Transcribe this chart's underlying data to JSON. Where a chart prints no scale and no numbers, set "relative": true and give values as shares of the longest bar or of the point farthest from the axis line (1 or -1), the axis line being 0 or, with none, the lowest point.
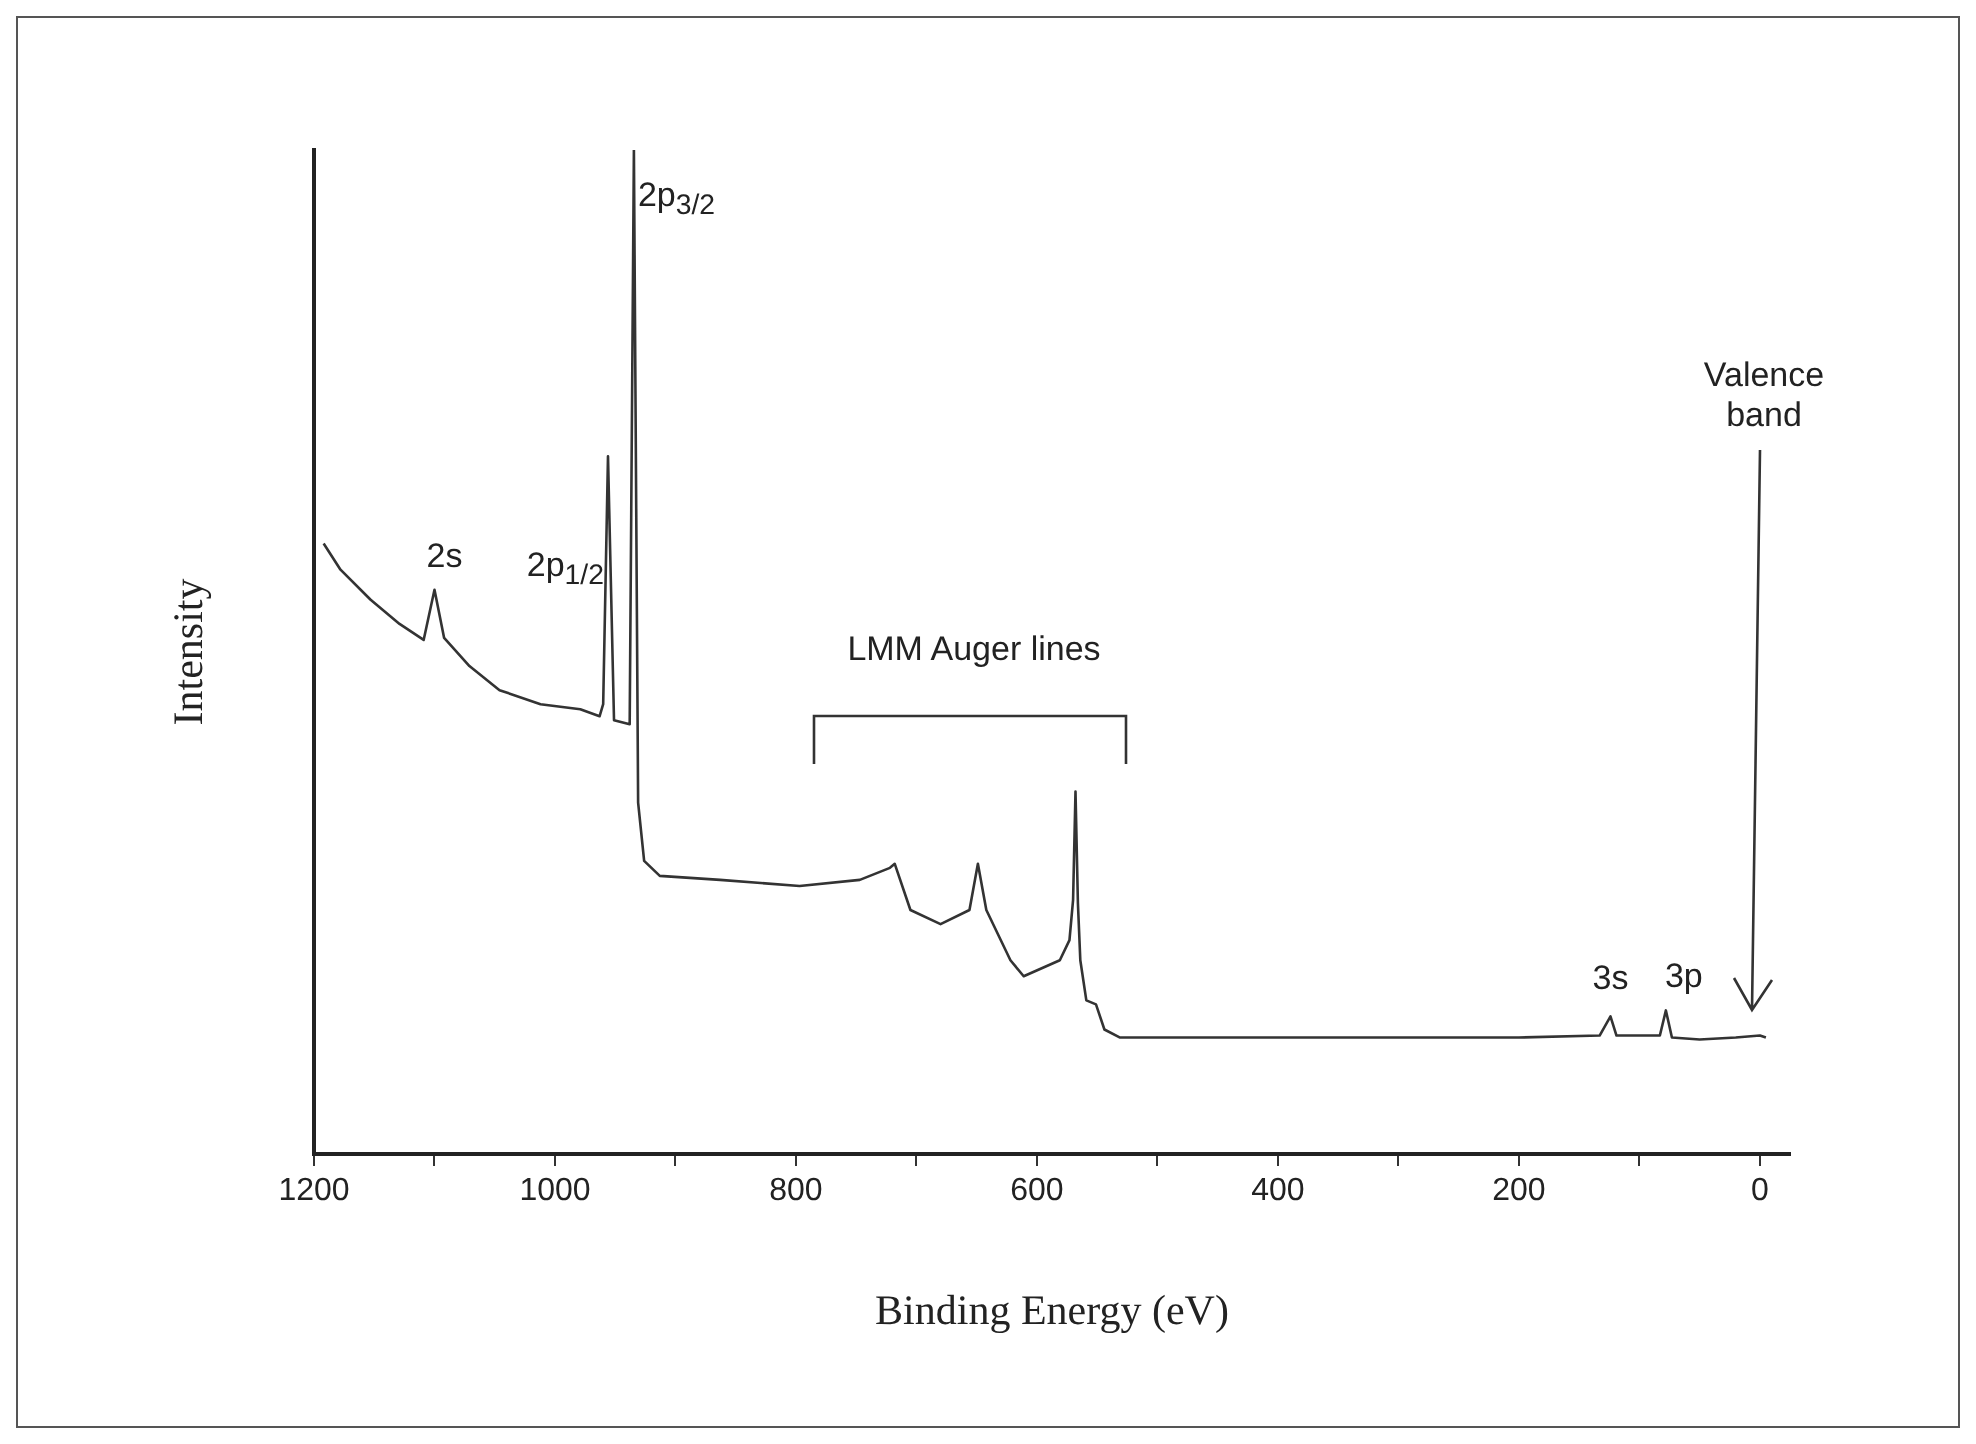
{
  "chart_data": {
    "type": "line",
    "relative": true,
    "xlabel": "Binding Energy (eV)",
    "ylabel": "Intensity",
    "marker": "none",
    "grid": false,
    "legend": false,
    "xlim": [
      1200,
      -25
    ],
    "xticks": [
      1200,
      {
        "value": 1100,
        "label": null
      },
      1000,
      {
        "value": 900,
        "label": null
      },
      800,
      {
        "value": 700,
        "label": null
      },
      600,
      {
        "value": 500,
        "label": null
      },
      400,
      {
        "value": 300,
        "label": null
      },
      200,
      {
        "value": 100,
        "label": null
      },
      0
    ],
    "series": [
      {
        "color": "#333333",
        "x": [
          1192,
          1178,
          1153,
          1129,
          1109,
          1100,
          1092,
          1071,
          1046,
          1012,
          979,
          963,
          960,
          956,
          951,
          938,
          934.5,
          931,
          926,
          913,
          863,
          797,
          747,
          722,
          718,
          705,
          680,
          656,
          649,
          642,
          622,
          611,
          581,
          573,
          570,
          568,
          566,
          564,
          559,
          551,
          544,
          531,
          400,
          300,
          200,
          133,
          124,
          119,
          83,
          78,
          73,
          50,
          20,
          0,
          -5
        ],
        "values": [
          0.608,
          0.582,
          0.552,
          0.528,
          0.512,
          0.562,
          0.514,
          0.486,
          0.462,
          0.448,
          0.443,
          0.436,
          0.448,
          0.695,
          0.432,
          0.428,
          1,
          0.35,
          0.292,
          0.277,
          0.273,
          0.267,
          0.273,
          0.285,
          0.289,
          0.243,
          0.229,
          0.243,
          0.289,
          0.243,
          0.193,
          0.177,
          0.193,
          0.213,
          0.253,
          0.361,
          0.25,
          0.193,
          0.153,
          0.149,
          0.124,
          0.116,
          0.116,
          0.116,
          0.116,
          0.118,
          0.137,
          0.118,
          0.118,
          0.143,
          0.116,
          0.114,
          0.116,
          0.118,
          0.116
        ]
      }
    ],
    "annotations": [
      {
        "text": "2s",
        "x": 1100,
        "y": 0.562
      },
      {
        "text": "2p$_{1/2}$",
        "x": 956,
        "y": 0.695
      },
      {
        "text": "2p$_{3/2}$",
        "x": 934.5,
        "y": 1
      },
      "LMM Auger lines",
      "Valence band",
      {
        "text": "3s",
        "x": 124,
        "y": 0.137
      },
      {
        "text": "3p",
        "x": 78,
        "y": 0.143
      }
    ]
  }
}
